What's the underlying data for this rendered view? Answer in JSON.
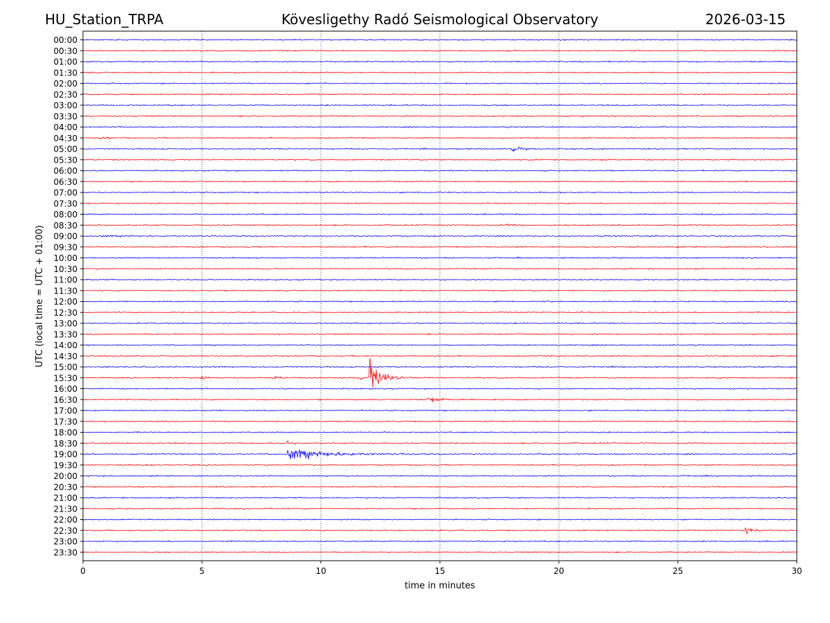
{
  "header": {
    "station": "HU_Station_TRPA",
    "title": "Kövesligethy Radó Seismological Observatory",
    "date": "2026-03-15"
  },
  "chart_data": {
    "type": "line",
    "title": "Kövesligethy Radó Seismological Observatory",
    "xlabel": "time in minutes",
    "ylabel": "UTC (local time = UTC + 01:00)",
    "xlim": [
      0,
      30
    ],
    "xticks": [
      0,
      5,
      10,
      15,
      20,
      25,
      30
    ],
    "vertical_gridlines_at": [
      5,
      10,
      15,
      20,
      25
    ],
    "colors": {
      "even_rows": "#0000ff",
      "odd_rows": "#ff0000"
    },
    "rows": [
      "00:00",
      "00:30",
      "01:00",
      "01:30",
      "02:00",
      "02:30",
      "03:00",
      "03:30",
      "04:00",
      "04:30",
      "05:00",
      "05:30",
      "06:00",
      "06:30",
      "07:00",
      "07:30",
      "08:00",
      "08:30",
      "09:00",
      "09:30",
      "10:00",
      "10:30",
      "11:00",
      "11:30",
      "12:00",
      "12:30",
      "13:00",
      "13:30",
      "14:00",
      "14:30",
      "15:00",
      "15:30",
      "16:00",
      "16:30",
      "17:00",
      "17:30",
      "18:00",
      "18:30",
      "19:00",
      "19:30",
      "20:00",
      "20:30",
      "21:00",
      "21:30",
      "22:00",
      "22:30",
      "23:00",
      "23:30"
    ],
    "events": [
      {
        "row": "02:00",
        "minute": 10.2,
        "amplitude": 0.3,
        "duration": 0.3
      },
      {
        "row": "03:00",
        "minute": 3.7,
        "amplitude": 0.3,
        "duration": 0.2
      },
      {
        "row": "04:30",
        "minute": 0.7,
        "amplitude": 0.25,
        "duration": 0.8
      },
      {
        "row": "05:00",
        "minute": 18.0,
        "amplitude": 0.8,
        "duration": 0.8
      },
      {
        "row": "08:30",
        "minute": 17.8,
        "amplitude": 0.3,
        "duration": 0.6
      },
      {
        "row": "09:00",
        "minute": 0.8,
        "amplitude": 0.2,
        "duration": 1.2
      },
      {
        "row": "12:00",
        "minute": 19.5,
        "amplitude": 0.25,
        "duration": 0.3
      },
      {
        "row": "15:30",
        "minute": 5.0,
        "amplitude": 0.6,
        "duration": 0.3
      },
      {
        "row": "15:30",
        "minute": 7.95,
        "amplitude": 0.9,
        "duration": 0.4
      },
      {
        "row": "15:30",
        "minute": 11.6,
        "amplitude": 0.7,
        "duration": 0.4
      },
      {
        "row": "15:30",
        "minute": 12.05,
        "amplitude": 5.2,
        "duration": 1.0
      },
      {
        "row": "16:30",
        "minute": 14.5,
        "amplitude": 0.9,
        "duration": 1.2
      },
      {
        "row": "18:30",
        "minute": 8.6,
        "amplitude": 0.6,
        "duration": 0.3
      },
      {
        "row": "19:00",
        "minute": 8.62,
        "amplitude": 1.9,
        "duration": 3.0
      },
      {
        "row": "19:30",
        "minute": 2.5,
        "amplitude": 0.3,
        "duration": 0.7
      },
      {
        "row": "22:30",
        "minute": 27.85,
        "amplitude": 1.1,
        "duration": 0.6
      }
    ]
  }
}
